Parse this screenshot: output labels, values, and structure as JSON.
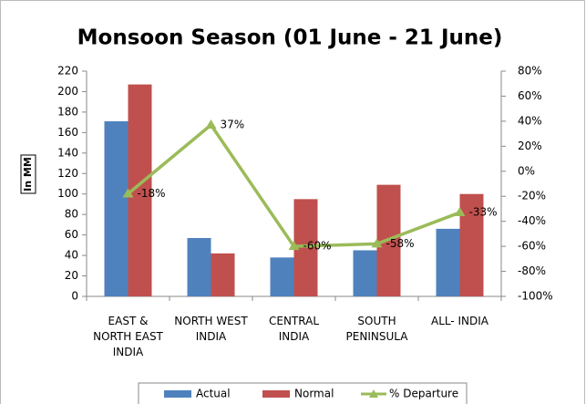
{
  "chart_data": {
    "type": "bar",
    "title": "Monsoon Season (01 June - 21 June)",
    "y_label": "In MM",
    "categories": [
      "EAST & NORTH EAST INDIA",
      "NORTH WEST INDIA",
      "CENTRAL INDIA",
      "SOUTH PENINSULA",
      "ALL- INDIA"
    ],
    "series": [
      {
        "name": "Actual",
        "color": "#4f81bd",
        "values": [
          171,
          57,
          38,
          45,
          66
        ]
      },
      {
        "name": "Normal",
        "color": "#c0504d",
        "values": [
          207,
          42,
          95,
          109,
          100
        ]
      },
      {
        "name": "% Departure",
        "color": "#9bbb59",
        "type": "line",
        "axis": "y2",
        "values": [
          -18,
          37,
          -60,
          -58,
          -33
        ],
        "value_labels": [
          "-18%",
          "37%",
          "-60%",
          "-58%",
          "-33%"
        ]
      }
    ],
    "ylim": [
      0,
      220
    ],
    "yticks": [
      0,
      20,
      40,
      60,
      80,
      100,
      120,
      140,
      160,
      180,
      200,
      220
    ],
    "y2lim": [
      -100,
      80
    ],
    "y2ticks": [
      {
        "value": -100,
        "label": "-100%"
      },
      {
        "value": -80,
        "label": "-80%"
      },
      {
        "value": -60,
        "label": "-60%"
      },
      {
        "value": -40,
        "label": "-40%"
      },
      {
        "value": -20,
        "label": "-20%"
      },
      {
        "value": 0,
        "label": "0%"
      },
      {
        "value": 20,
        "label": "20%"
      },
      {
        "value": 40,
        "label": "40%"
      },
      {
        "value": 60,
        "label": "60%"
      },
      {
        "value": 80,
        "label": "80%"
      }
    ],
    "legend": "bottom"
  }
}
